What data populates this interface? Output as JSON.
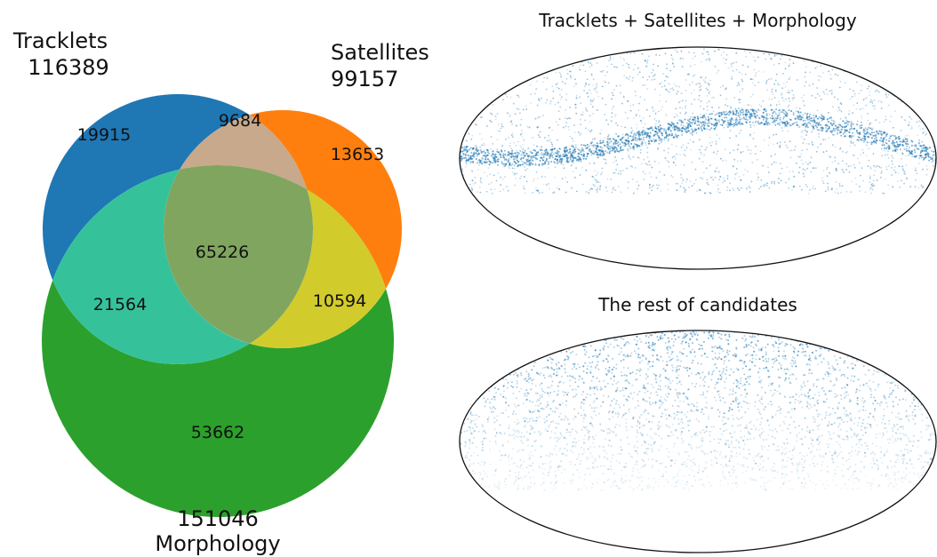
{
  "venn": {
    "sets": {
      "tracklets": {
        "label": "Tracklets",
        "total": "116389",
        "color": "#1f77b4"
      },
      "satellites": {
        "label": "Satellites",
        "total": "99157",
        "color": "#ff7f0e"
      },
      "morphology": {
        "label": "Morphology",
        "total": "151046",
        "color": "#2ca02c"
      }
    },
    "regions": {
      "tracklets_only": "19915",
      "tracklets_satellites": "9684",
      "satellites_only": "13653",
      "all_three": "65226",
      "tracklets_morphology": "21564",
      "satellites_morphology": "10594",
      "morphology_only": "53662"
    },
    "overlap_colors": {
      "tracklets_satellites": "#c8a98b",
      "tracklets_morphology": "#35c29b",
      "satellites_morphology": "#d2cb2c",
      "all_three": "#80a55f"
    }
  },
  "sky_maps": [
    {
      "title": "Tracklets + Satellites + Morphology",
      "dot_color": "#1f77b4"
    },
    {
      "title": "The rest of candidates",
      "dot_color": "#1f77b4"
    }
  ]
}
